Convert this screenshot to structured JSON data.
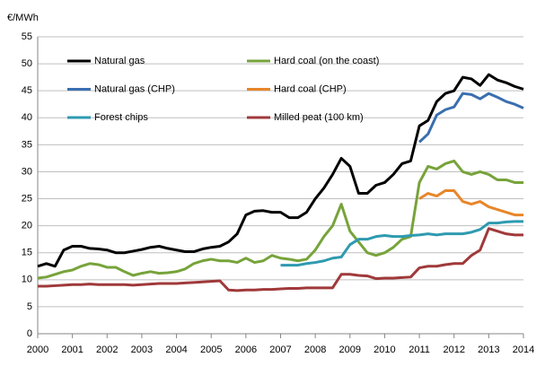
{
  "chart_data": {
    "type": "line",
    "y_label": "€/MWh",
    "x": [
      2000,
      2000.25,
      2000.5,
      2000.75,
      2001,
      2001.25,
      2001.5,
      2001.75,
      2002,
      2002.25,
      2002.5,
      2002.75,
      2003,
      2003.25,
      2003.5,
      2003.75,
      2004,
      2004.25,
      2004.5,
      2004.75,
      2005,
      2005.25,
      2005.5,
      2005.75,
      2006,
      2006.25,
      2006.5,
      2006.75,
      2007,
      2007.25,
      2007.5,
      2007.75,
      2008,
      2008.25,
      2008.5,
      2008.75,
      2009,
      2009.25,
      2009.5,
      2009.75,
      2010,
      2010.25,
      2010.5,
      2010.75,
      2011,
      2011.25,
      2011.5,
      2011.75,
      2012,
      2012.25,
      2012.5,
      2012.75,
      2013,
      2013.25,
      2013.5,
      2013.75,
      2014
    ],
    "xlim": [
      2000,
      2014
    ],
    "xticks": [
      2000,
      2001,
      2002,
      2003,
      2004,
      2005,
      2006,
      2007,
      2008,
      2009,
      2010,
      2011,
      2012,
      2013,
      2014
    ],
    "ylim": [
      0,
      55
    ],
    "yticks": [
      0,
      5,
      10,
      15,
      20,
      25,
      30,
      35,
      40,
      45,
      50,
      55
    ],
    "grid": true,
    "series": [
      {
        "name": "Natural gas",
        "color": "#000000",
        "values": [
          12.5,
          13,
          12.5,
          15.5,
          16.2,
          16.2,
          15.8,
          15.7,
          15.5,
          15,
          15,
          15.3,
          15.6,
          16,
          16.2,
          15.8,
          15.5,
          15.2,
          15.2,
          15.7,
          16,
          16.2,
          17,
          18.5,
          22,
          22.7,
          22.8,
          22.5,
          22.5,
          21.5,
          21.5,
          22.5,
          25,
          27,
          29.5,
          32.5,
          31,
          26,
          26,
          27.5,
          28,
          29.5,
          31.5,
          32,
          38.5,
          39.5,
          43,
          44.5,
          45,
          47.5,
          47.2,
          46,
          48,
          47,
          46.5,
          45.8,
          45.3
        ]
      },
      {
        "name": "Hard coal (on the coast)",
        "color": "#77a33b",
        "values": [
          10.3,
          10.5,
          11,
          11.5,
          11.8,
          12.5,
          13,
          12.8,
          12.3,
          12.3,
          11.5,
          10.8,
          11.2,
          11.5,
          11.2,
          11.3,
          11.5,
          12,
          13,
          13.5,
          13.8,
          13.5,
          13.5,
          13.2,
          14,
          13.2,
          13.5,
          14.5,
          14,
          13.8,
          13.5,
          13.8,
          15.5,
          18,
          20,
          24,
          19,
          17,
          15,
          14.5,
          15,
          16,
          17.5,
          18,
          28,
          31,
          30.5,
          31.5,
          32,
          30,
          29.5,
          30,
          29.5,
          28.5,
          28.5,
          28,
          28
        ]
      },
      {
        "name": "Natural gas (CHP)",
        "color": "#3a6fb0",
        "values": [
          null,
          null,
          null,
          null,
          null,
          null,
          null,
          null,
          null,
          null,
          null,
          null,
          null,
          null,
          null,
          null,
          null,
          null,
          null,
          null,
          null,
          null,
          null,
          null,
          null,
          null,
          null,
          null,
          null,
          null,
          null,
          null,
          null,
          null,
          null,
          null,
          null,
          null,
          null,
          null,
          null,
          null,
          null,
          null,
          35.5,
          37,
          40.5,
          41.5,
          42,
          44.5,
          44.3,
          43.5,
          44.5,
          43.8,
          43,
          42.5,
          41.8
        ]
      },
      {
        "name": "Hard coal (CHP)",
        "color": "#e8862a",
        "values": [
          null,
          null,
          null,
          null,
          null,
          null,
          null,
          null,
          null,
          null,
          null,
          null,
          null,
          null,
          null,
          null,
          null,
          null,
          null,
          null,
          null,
          null,
          null,
          null,
          null,
          null,
          null,
          null,
          null,
          null,
          null,
          null,
          null,
          null,
          null,
          null,
          null,
          null,
          null,
          null,
          null,
          null,
          null,
          null,
          25,
          26,
          25.5,
          26.5,
          26.5,
          24.5,
          24,
          24.5,
          23.5,
          23,
          22.5,
          22,
          22
        ]
      },
      {
        "name": "Forest chips",
        "color": "#2e9ab0",
        "values": [
          null,
          null,
          null,
          null,
          null,
          null,
          null,
          null,
          null,
          null,
          null,
          null,
          null,
          null,
          null,
          null,
          null,
          null,
          null,
          null,
          null,
          null,
          null,
          null,
          null,
          null,
          null,
          null,
          12.7,
          12.7,
          12.7,
          13,
          13.2,
          13.5,
          14,
          14.2,
          16.5,
          17.5,
          17.5,
          18,
          18.2,
          18,
          18,
          18.2,
          18.3,
          18.5,
          18.3,
          18.5,
          18.5,
          18.5,
          18.8,
          19.3,
          20.5,
          20.5,
          20.7,
          20.8,
          20.8
        ]
      },
      {
        "name": "Milled peat (100 km)",
        "color": "#a0393a",
        "values": [
          8.8,
          8.8,
          8.9,
          9,
          9.1,
          9.1,
          9.2,
          9.1,
          9.1,
          9.1,
          9.1,
          9,
          9.1,
          9.2,
          9.3,
          9.3,
          9.3,
          9.4,
          9.5,
          9.6,
          9.7,
          9.8,
          8.1,
          8,
          8.1,
          8.1,
          8.2,
          8.2,
          8.3,
          8.4,
          8.4,
          8.5,
          8.5,
          8.5,
          8.5,
          11,
          11,
          10.8,
          10.7,
          10.2,
          10.3,
          10.3,
          10.4,
          10.5,
          12.2,
          12.5,
          12.5,
          12.8,
          13,
          13,
          14.5,
          15.5,
          19.5,
          19,
          18.5,
          18.3,
          18.3
        ]
      }
    ]
  }
}
